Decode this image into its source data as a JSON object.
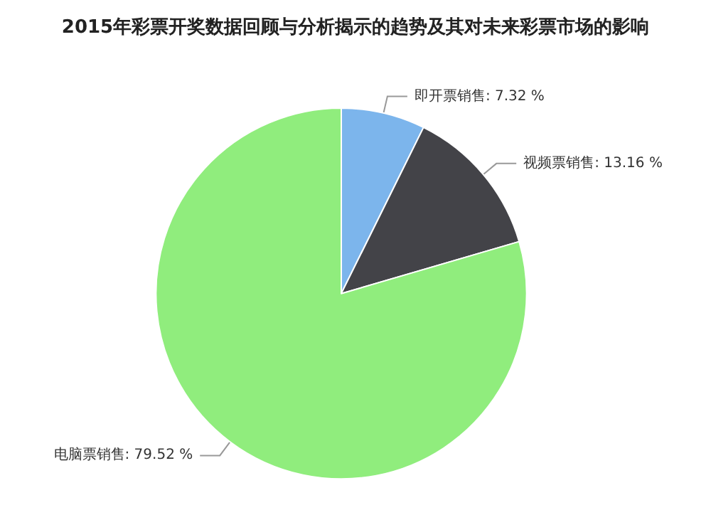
{
  "chart_data": {
    "type": "pie",
    "title": "2015年彩票开奖数据回顾与分析揭示的趋势及其对未来彩票市场的影响",
    "categories": [
      "即开票销售",
      "视频票销售",
      "电脑票销售"
    ],
    "values": [
      7.32,
      13.16,
      79.52
    ],
    "value_labels": [
      "7.32 %",
      "13.16 %",
      "79.52 %"
    ],
    "colors": [
      "#7cb5ec",
      "#434348",
      "#90ed7d"
    ],
    "legend": false
  }
}
